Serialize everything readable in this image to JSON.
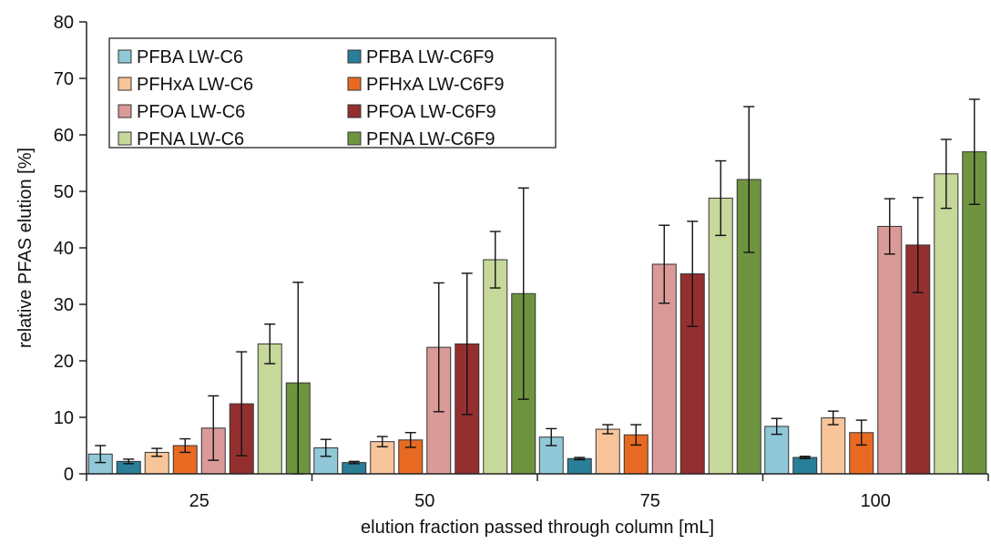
{
  "chart_data": {
    "type": "bar",
    "title": "",
    "xlabel": "elution fraction passed through column [mL]",
    "ylabel": "relative PFAS elution [%]",
    "categories": [
      "25",
      "50",
      "75",
      "100"
    ],
    "ylim": [
      0,
      80
    ],
    "yticks": [
      "0",
      "10",
      "20",
      "30",
      "40",
      "50",
      "60",
      "70",
      "80"
    ],
    "grid": false,
    "legend_position": "top-left",
    "series": [
      {
        "name": "PFBA LW-C6",
        "color": "#90c8d8",
        "values": [
          3.5,
          4.6,
          6.5,
          8.4
        ],
        "errors": [
          1.5,
          1.5,
          1.5,
          1.4
        ]
      },
      {
        "name": "PFBA LW-C6F9",
        "color": "#2a7f98",
        "values": [
          2.2,
          2.0,
          2.7,
          2.9
        ],
        "errors": [
          0.4,
          0.2,
          0.2,
          0.2
        ]
      },
      {
        "name": "PFHxA LW-C6",
        "color": "#f8c49a",
        "values": [
          3.8,
          5.7,
          7.9,
          9.9
        ],
        "errors": [
          0.7,
          0.9,
          0.8,
          1.2
        ]
      },
      {
        "name": "PFHxA LW-C6F9",
        "color": "#e86a22",
        "values": [
          5.0,
          6.0,
          6.9,
          7.3
        ],
        "errors": [
          1.2,
          1.3,
          1.8,
          2.2
        ]
      },
      {
        "name": "PFOA LW-C6",
        "color": "#da9a98",
        "values": [
          8.1,
          22.4,
          37.1,
          43.8
        ],
        "errors": [
          5.7,
          11.4,
          6.9,
          4.9
        ]
      },
      {
        "name": "PFOA LW-C6F9",
        "color": "#942f30",
        "values": [
          12.4,
          23.0,
          35.4,
          40.5
        ],
        "errors": [
          9.2,
          12.5,
          9.3,
          8.4
        ]
      },
      {
        "name": "PFNA LW-C6",
        "color": "#c6d89a",
        "values": [
          23.0,
          37.9,
          48.8,
          53.1
        ],
        "errors": [
          3.5,
          5.0,
          6.6,
          6.1
        ]
      },
      {
        "name": "PFNA LW-C6F9",
        "color": "#6f9440",
        "values": [
          16.1,
          31.9,
          52.1,
          57.0
        ],
        "errors": [
          17.8,
          18.7,
          12.9,
          9.3
        ]
      }
    ]
  }
}
